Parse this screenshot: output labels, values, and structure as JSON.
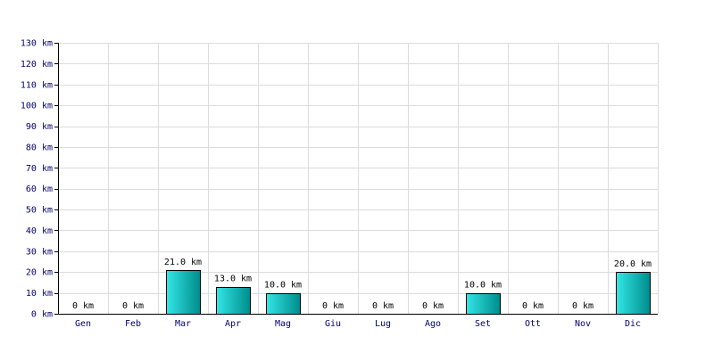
{
  "chart_data": {
    "type": "bar",
    "title": "",
    "xlabel": "",
    "ylabel": "",
    "unit": "km",
    "categories": [
      "Gen",
      "Feb",
      "Mar",
      "Apr",
      "Mag",
      "Giu",
      "Lug",
      "Ago",
      "Set",
      "Ott",
      "Nov",
      "Dic"
    ],
    "values": [
      0,
      0,
      21.0,
      13.0,
      10.0,
      0,
      0,
      0,
      10.0,
      0,
      0,
      20.0
    ],
    "data_labels": [
      "0 km",
      "0 km",
      "21.0 km",
      "13.0 km",
      "10.0 km",
      "0 km",
      "0 km",
      "0 km",
      "10.0 km",
      "0 km",
      "0 km",
      "20.0 km"
    ],
    "ylim": [
      0,
      130
    ],
    "yticks": [
      0,
      10,
      20,
      30,
      40,
      50,
      60,
      70,
      80,
      90,
      100,
      110,
      120,
      130
    ],
    "ytick_labels": [
      "0 km",
      "10 km",
      "20 km",
      "30 km",
      "40 km",
      "50 km",
      "60 km",
      "70 km",
      "80 km",
      "90 km",
      "100 km",
      "110 km",
      "120 km",
      "130 km"
    ],
    "grid": true,
    "legend": "none",
    "colors": {
      "bar_light": "#33e6e6",
      "bar_dark": "#008c8c",
      "bar_outline": "#000000",
      "grid": "#dcdcdc",
      "axis": "#000000",
      "tick_text": "#00006e"
    }
  }
}
